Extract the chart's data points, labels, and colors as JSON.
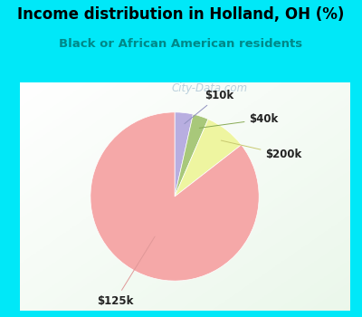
{
  "title": "Income distribution in Holland, OH (%)",
  "subtitle": "Black or African American residents",
  "slices": [
    {
      "label": "$10k",
      "value": 3.5,
      "color": "#b8aee0"
    },
    {
      "label": "$40k",
      "value": 3.0,
      "color": "#a8c87a"
    },
    {
      "label": "$200k",
      "value": 8.0,
      "color": "#eef5a0"
    },
    {
      "label": "$125k",
      "value": 85.5,
      "color": "#f5a8a8"
    }
  ],
  "bg_outer": "#00e8f8",
  "bg_chart_top_left": "#e8f8f0",
  "bg_chart_bottom_right": "#d0ecd8",
  "title_color": "#000000",
  "subtitle_color": "#008888",
  "watermark": "City-Data.com",
  "watermark_color": "#b0c8d8",
  "start_angle": 90,
  "border_width": 8
}
